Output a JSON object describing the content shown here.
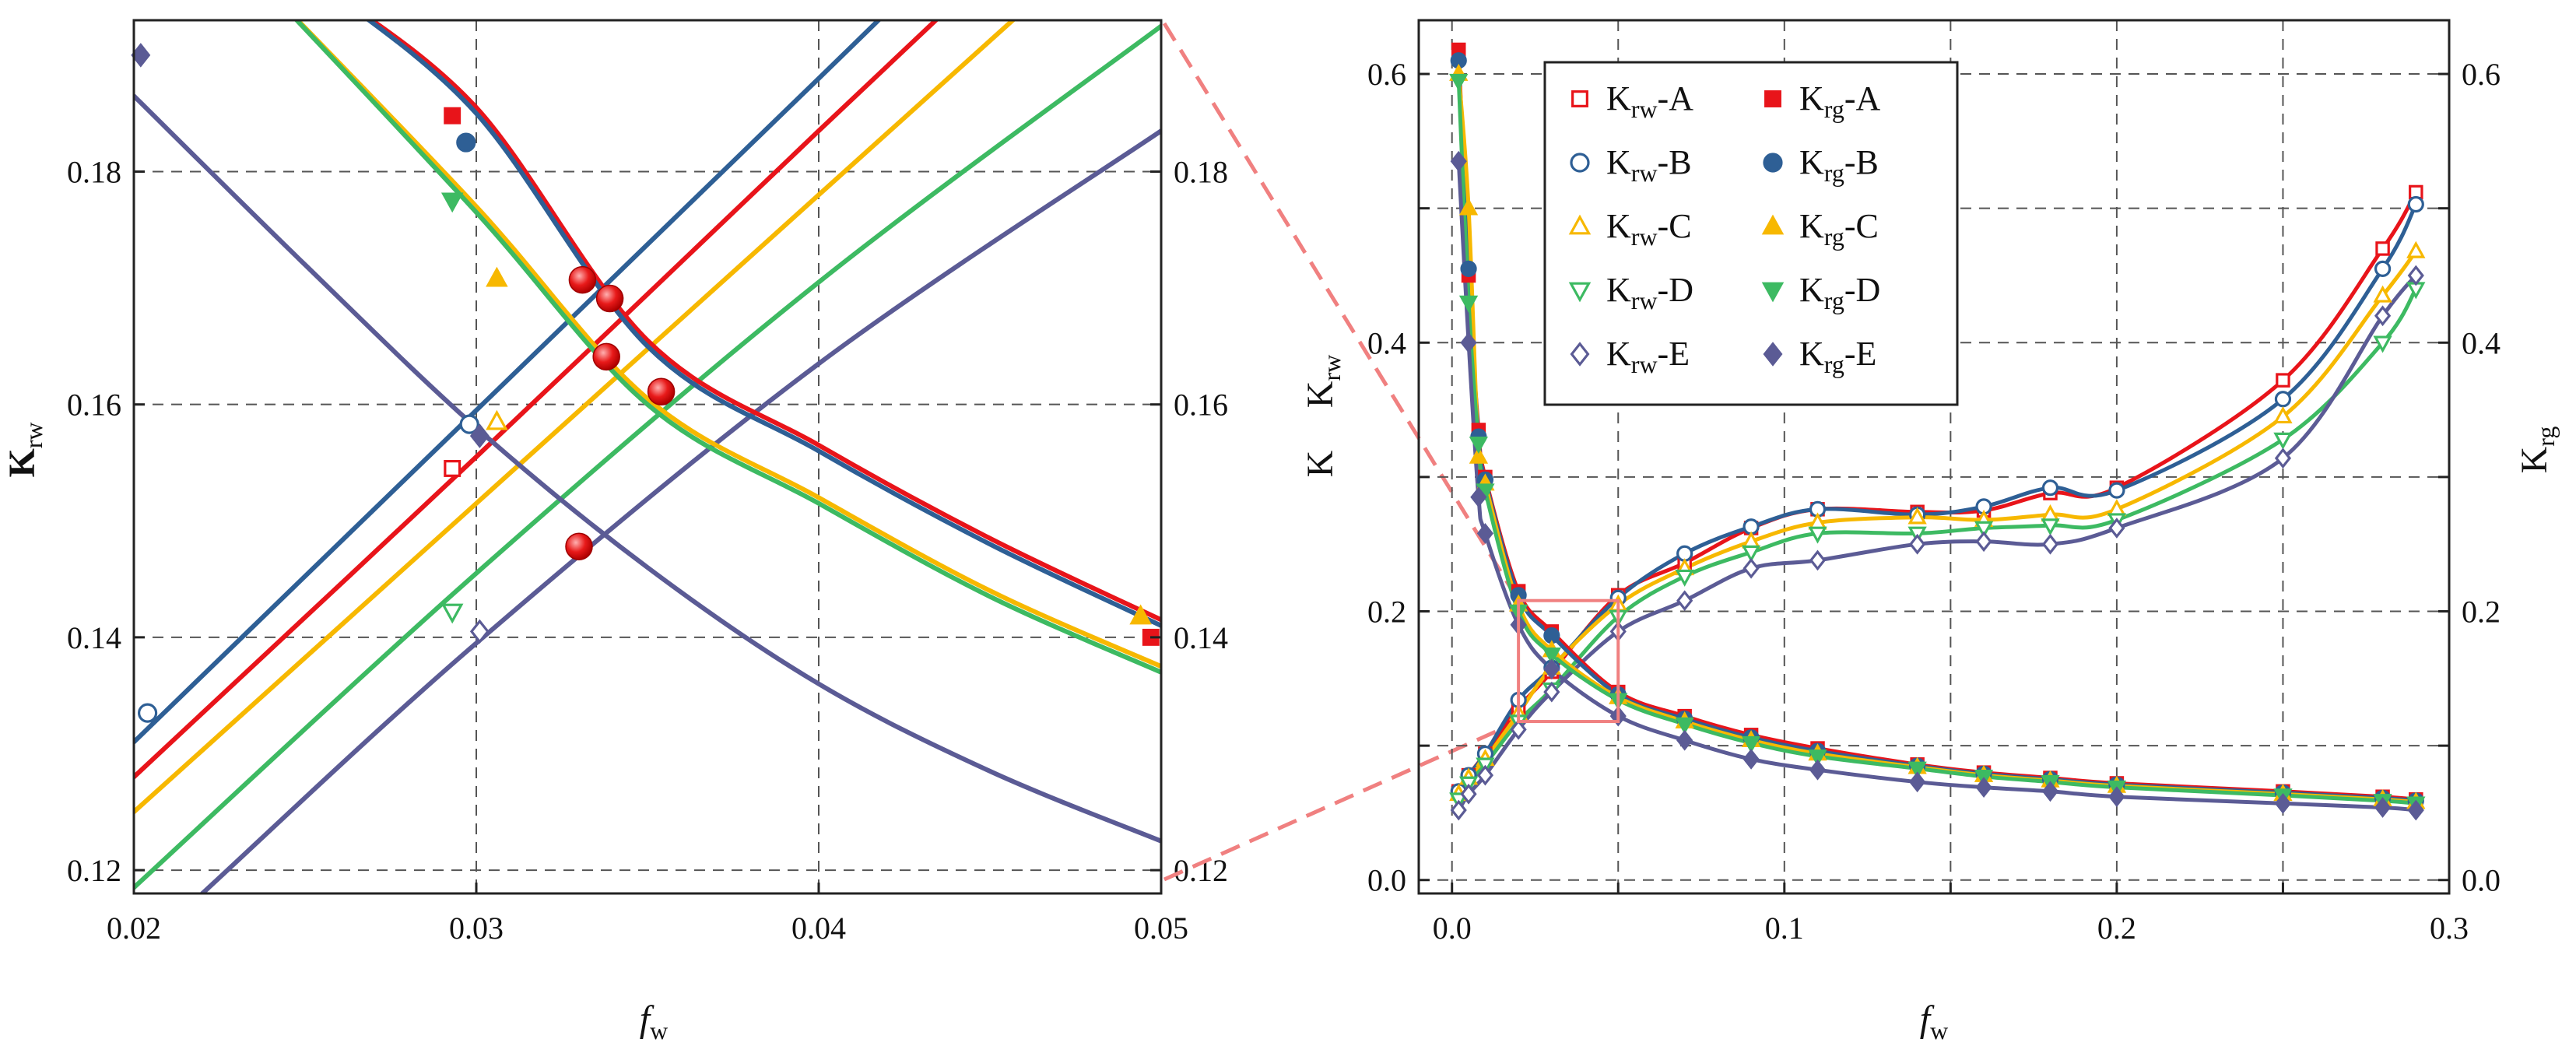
{
  "colors": {
    "A": "#e8141a",
    "B": "#2e5f95",
    "C": "#f7b800",
    "D": "#3dba62",
    "E": "#5b5b95",
    "crossing_marker": "#e81a1a",
    "zoom_box": "#f08080",
    "grid": "#555555"
  },
  "left_panel": {
    "x_label_main": "f",
    "x_label_sub": "w",
    "y_label_main": "K",
    "y_label_sub": "rw",
    "x_ticks": [
      "0.02",
      "0.03",
      "0.04",
      "0.05"
    ],
    "y_ticks_left": [
      "0.12",
      "0.14",
      "0.16",
      "0.18"
    ],
    "y_ticks_right": [
      "0.12",
      "0.14",
      "0.16",
      "0.18"
    ]
  },
  "right_panel": {
    "x_label_main": "f",
    "x_label_sub": "w",
    "y_label_line1": "K",
    "y_label_line2_main": "K",
    "y_label_line2_sub": "rw",
    "y2_label_main": "K",
    "y2_label_sub": "rg",
    "x_ticks": [
      "0.0",
      "0.1",
      "0.2",
      "0.3"
    ],
    "y_ticks_left": [
      "0.0",
      "0.2",
      "0.4",
      "0.6"
    ],
    "y_ticks_right": [
      "0.0",
      "0.2",
      "0.4",
      "0.6"
    ]
  },
  "legend": [
    {
      "main": "K",
      "sub": "rw",
      "suffix": "-A",
      "series": "A",
      "marker": "square-open"
    },
    {
      "main": "K",
      "sub": "rg",
      "suffix": "-A",
      "series": "A",
      "marker": "square-filled"
    },
    {
      "main": "K",
      "sub": "rw",
      "suffix": "-B",
      "series": "B",
      "marker": "circle-open"
    },
    {
      "main": "K",
      "sub": "rg",
      "suffix": "-B",
      "series": "B",
      "marker": "circle-filled"
    },
    {
      "main": "K",
      "sub": "rw",
      "suffix": "-C",
      "series": "C",
      "marker": "triangle-up-open"
    },
    {
      "main": "K",
      "sub": "rg",
      "suffix": "-C",
      "series": "C",
      "marker": "triangle-up-filled"
    },
    {
      "main": "K",
      "sub": "rw",
      "suffix": "-D",
      "series": "D",
      "marker": "triangle-down-open"
    },
    {
      "main": "K",
      "sub": "rg",
      "suffix": "-D",
      "series": "D",
      "marker": "triangle-down-filled"
    },
    {
      "main": "K",
      "sub": "rw",
      "suffix": "-E",
      "series": "E",
      "marker": "diamond-open"
    },
    {
      "main": "K",
      "sub": "rg",
      "suffix": "-E",
      "series": "E",
      "marker": "diamond-filled"
    }
  ],
  "chart_data": [
    {
      "type": "line",
      "title": "",
      "xlabel": "f_w",
      "ylabel": "K_rw",
      "xlim": [
        0.02,
        0.05
      ],
      "ylim": [
        0.118,
        0.193
      ],
      "grid": true,
      "lines": [
        {
          "series": "B",
          "kind": "krw",
          "points": [
            [
              0.02,
              0.131
            ],
            [
              0.03,
              0.1595
            ],
            [
              0.04,
              0.188
            ],
            [
              0.0433,
              0.1975
            ]
          ]
        },
        {
          "series": "A",
          "kind": "krw",
          "points": [
            [
              0.02,
              0.128
            ],
            [
              0.03,
              0.1555
            ],
            [
              0.04,
              0.1835
            ],
            [
              0.0445,
              0.196
            ]
          ]
        },
        {
          "series": "C",
          "kind": "krw",
          "points": [
            [
              0.02,
              0.125
            ],
            [
              0.03,
              0.1515
            ],
            [
              0.04,
              0.178
            ],
            [
              0.0468,
              0.196
            ]
          ]
        },
        {
          "series": "D",
          "kind": "krw",
          "points": [
            [
              0.02,
              0.1185
            ],
            [
              0.03,
              0.1455
            ],
            [
              0.04,
              0.1705
            ],
            [
              0.05,
              0.1925
            ]
          ]
        },
        {
          "series": "E",
          "kind": "krw",
          "points": [
            [
              0.022,
              0.118
            ],
            [
              0.03,
              0.1395
            ],
            [
              0.04,
              0.1635
            ],
            [
              0.05,
              0.1835
            ]
          ]
        },
        {
          "series": "A",
          "kind": "krg",
          "points": [
            [
              0.0255,
              0.196
            ],
            [
              0.03,
              0.1855
            ],
            [
              0.035,
              0.1655
            ],
            [
              0.04,
              0.1565
            ],
            [
              0.045,
              0.1485
            ],
            [
              0.05,
              0.1415
            ]
          ]
        },
        {
          "series": "B",
          "kind": "krg",
          "points": [
            [
              0.0255,
              0.196
            ],
            [
              0.03,
              0.185
            ],
            [
              0.035,
              0.165
            ],
            [
              0.04,
              0.156
            ],
            [
              0.045,
              0.148
            ],
            [
              0.05,
              0.141
            ]
          ]
        },
        {
          "series": "C",
          "kind": "krg",
          "points": [
            [
              0.0238,
              0.196
            ],
            [
              0.03,
              0.177
            ],
            [
              0.035,
              0.1605
            ],
            [
              0.04,
              0.152
            ],
            [
              0.045,
              0.144
            ],
            [
              0.05,
              0.1375
            ]
          ]
        },
        {
          "series": "D",
          "kind": "krg",
          "points": [
            [
              0.0238,
              0.196
            ],
            [
              0.03,
              0.1765
            ],
            [
              0.035,
              0.16
            ],
            [
              0.04,
              0.1515
            ],
            [
              0.045,
              0.1435
            ],
            [
              0.05,
              0.137
            ]
          ]
        },
        {
          "series": "E",
          "kind": "krg",
          "points": [
            [
              0.02,
              0.1865
            ],
            [
              0.025,
              0.172
            ],
            [
              0.03,
              0.158
            ],
            [
              0.035,
              0.146
            ],
            [
              0.04,
              0.136
            ],
            [
              0.045,
              0.1285
            ],
            [
              0.05,
              0.1225
            ]
          ]
        }
      ],
      "markers": [
        {
          "series": "B",
          "kind": "krw",
          "marker": "circle-open",
          "x": 0.0204,
          "y": 0.1335
        },
        {
          "series": "E",
          "kind": "krg",
          "marker": "diamond-filled",
          "x": 0.0202,
          "y": 0.19
        },
        {
          "series": "A",
          "kind": "krg",
          "marker": "square-filled",
          "x": 0.0293,
          "y": 0.1848
        },
        {
          "series": "B",
          "kind": "krg",
          "marker": "circle-filled",
          "x": 0.0297,
          "y": 0.1825
        },
        {
          "series": "D",
          "kind": "krg",
          "marker": "triangle-down-filled",
          "x": 0.0293,
          "y": 0.1775
        },
        {
          "series": "C",
          "kind": "krg",
          "marker": "triangle-up-filled",
          "x": 0.0306,
          "y": 0.1708
        },
        {
          "series": "B",
          "kind": "krw",
          "marker": "circle-open",
          "x": 0.0298,
          "y": 0.1583
        },
        {
          "series": "C",
          "kind": "krw",
          "marker": "triangle-up-open",
          "x": 0.0306,
          "y": 0.1585
        },
        {
          "series": "E",
          "kind": "krg",
          "marker": "diamond-filled",
          "x": 0.0301,
          "y": 0.1573
        },
        {
          "series": "A",
          "kind": "krw",
          "marker": "square-open",
          "x": 0.0293,
          "y": 0.1545
        },
        {
          "series": "D",
          "kind": "krw",
          "marker": "triangle-down-open",
          "x": 0.0293,
          "y": 0.1422
        },
        {
          "series": "E",
          "kind": "krw",
          "marker": "diamond-open",
          "x": 0.0301,
          "y": 0.1405
        },
        {
          "series": "C",
          "kind": "krg",
          "marker": "triangle-up-filled",
          "x": 0.0494,
          "y": 0.1418
        },
        {
          "series": "A",
          "kind": "krg",
          "marker": "square-filled",
          "x": 0.0497,
          "y": 0.14
        }
      ],
      "crossing_points": [
        {
          "label": "A-B",
          "x": 0.0331,
          "y": 0.1707
        },
        {
          "label": "A-B",
          "x": 0.0339,
          "y": 0.1691
        },
        {
          "label": "C-D",
          "x": 0.0338,
          "y": 0.1641
        },
        {
          "label": "C-D",
          "x": 0.0354,
          "y": 0.1611
        },
        {
          "label": "E",
          "x": 0.033,
          "y": 0.1478
        }
      ]
    },
    {
      "type": "line",
      "title": "",
      "xlabel": "f_w",
      "ylabel": "K / K_rw",
      "y2label": "K_rg",
      "xlim": [
        -0.01,
        0.3
      ],
      "ylim": [
        -0.01,
        0.64
      ],
      "grid": true,
      "zoom_box": {
        "x": [
          0.02,
          0.05
        ],
        "y": [
          0.118,
          0.208
        ]
      },
      "krw": [
        {
          "series": "A",
          "x": [
            0.002,
            0.005,
            0.01,
            0.02,
            0.03,
            0.05,
            0.07,
            0.09,
            0.11,
            0.14,
            0.16,
            0.18,
            0.2,
            0.25,
            0.28,
            0.29
          ],
          "y": [
            0.066,
            0.078,
            0.094,
            0.128,
            0.155,
            0.212,
            0.236,
            0.262,
            0.276,
            0.274,
            0.275,
            0.288,
            0.292,
            0.372,
            0.47,
            0.512
          ]
        },
        {
          "series": "B",
          "x": [
            0.002,
            0.005,
            0.01,
            0.02,
            0.03,
            0.05,
            0.07,
            0.09,
            0.11,
            0.14,
            0.16,
            0.18,
            0.2,
            0.25,
            0.28,
            0.29
          ],
          "y": [
            0.066,
            0.078,
            0.094,
            0.134,
            0.158,
            0.21,
            0.243,
            0.263,
            0.276,
            0.272,
            0.278,
            0.292,
            0.29,
            0.358,
            0.455,
            0.503
          ]
        },
        {
          "series": "C",
          "x": [
            0.002,
            0.005,
            0.01,
            0.02,
            0.03,
            0.05,
            0.07,
            0.09,
            0.11,
            0.14,
            0.16,
            0.18,
            0.2,
            0.25,
            0.28,
            0.29
          ],
          "y": [
            0.064,
            0.076,
            0.09,
            0.124,
            0.158,
            0.205,
            0.232,
            0.252,
            0.266,
            0.27,
            0.268,
            0.272,
            0.276,
            0.345,
            0.435,
            0.468
          ]
        },
        {
          "series": "D",
          "x": [
            0.002,
            0.005,
            0.01,
            0.02,
            0.03,
            0.05,
            0.07,
            0.09,
            0.11,
            0.14,
            0.16,
            0.18,
            0.2,
            0.25,
            0.28,
            0.29
          ],
          "y": [
            0.06,
            0.072,
            0.086,
            0.118,
            0.142,
            0.196,
            0.226,
            0.244,
            0.258,
            0.258,
            0.262,
            0.264,
            0.268,
            0.328,
            0.4,
            0.44
          ]
        },
        {
          "series": "E",
          "x": [
            0.002,
            0.005,
            0.01,
            0.02,
            0.03,
            0.05,
            0.07,
            0.09,
            0.11,
            0.14,
            0.16,
            0.18,
            0.2,
            0.25,
            0.28,
            0.29
          ],
          "y": [
            0.052,
            0.064,
            0.078,
            0.112,
            0.14,
            0.185,
            0.208,
            0.232,
            0.238,
            0.25,
            0.252,
            0.25,
            0.262,
            0.314,
            0.42,
            0.45
          ]
        }
      ],
      "krg": [
        {
          "series": "A",
          "x": [
            0.002,
            0.005,
            0.008,
            0.01,
            0.02,
            0.03,
            0.05,
            0.07,
            0.09,
            0.11,
            0.14,
            0.16,
            0.18,
            0.2,
            0.25,
            0.28,
            0.29
          ],
          "y": [
            0.618,
            0.45,
            0.335,
            0.3,
            0.215,
            0.185,
            0.14,
            0.122,
            0.108,
            0.098,
            0.086,
            0.08,
            0.076,
            0.072,
            0.066,
            0.062,
            0.06
          ]
        },
        {
          "series": "B",
          "x": [
            0.002,
            0.005,
            0.008,
            0.01,
            0.02,
            0.03,
            0.05,
            0.07,
            0.09,
            0.11,
            0.14,
            0.16,
            0.18,
            0.2,
            0.25,
            0.28,
            0.29
          ],
          "y": [
            0.61,
            0.455,
            0.33,
            0.298,
            0.212,
            0.182,
            0.138,
            0.12,
            0.106,
            0.096,
            0.085,
            0.079,
            0.075,
            0.071,
            0.065,
            0.061,
            0.059
          ]
        },
        {
          "series": "C",
          "x": [
            0.002,
            0.005,
            0.008,
            0.01,
            0.02,
            0.03,
            0.05,
            0.07,
            0.09,
            0.11,
            0.14,
            0.16,
            0.18,
            0.2,
            0.25,
            0.28,
            0.29
          ],
          "y": [
            0.6,
            0.5,
            0.315,
            0.295,
            0.205,
            0.171,
            0.136,
            0.118,
            0.104,
            0.094,
            0.084,
            0.078,
            0.074,
            0.07,
            0.064,
            0.06,
            0.058
          ]
        },
        {
          "series": "D",
          "x": [
            0.002,
            0.005,
            0.008,
            0.01,
            0.02,
            0.03,
            0.05,
            0.07,
            0.09,
            0.11,
            0.14,
            0.16,
            0.18,
            0.2,
            0.25,
            0.28,
            0.29
          ],
          "y": [
            0.595,
            0.43,
            0.325,
            0.29,
            0.2,
            0.168,
            0.134,
            0.116,
            0.102,
            0.092,
            0.083,
            0.077,
            0.073,
            0.069,
            0.063,
            0.059,
            0.057
          ]
        },
        {
          "series": "E",
          "x": [
            0.002,
            0.005,
            0.008,
            0.01,
            0.02,
            0.03,
            0.05,
            0.07,
            0.09,
            0.11,
            0.14,
            0.16,
            0.18,
            0.2,
            0.25,
            0.28,
            0.29
          ],
          "y": [
            0.535,
            0.4,
            0.285,
            0.258,
            0.19,
            0.157,
            0.122,
            0.104,
            0.09,
            0.082,
            0.073,
            0.069,
            0.066,
            0.062,
            0.057,
            0.054,
            0.052
          ]
        }
      ]
    }
  ]
}
